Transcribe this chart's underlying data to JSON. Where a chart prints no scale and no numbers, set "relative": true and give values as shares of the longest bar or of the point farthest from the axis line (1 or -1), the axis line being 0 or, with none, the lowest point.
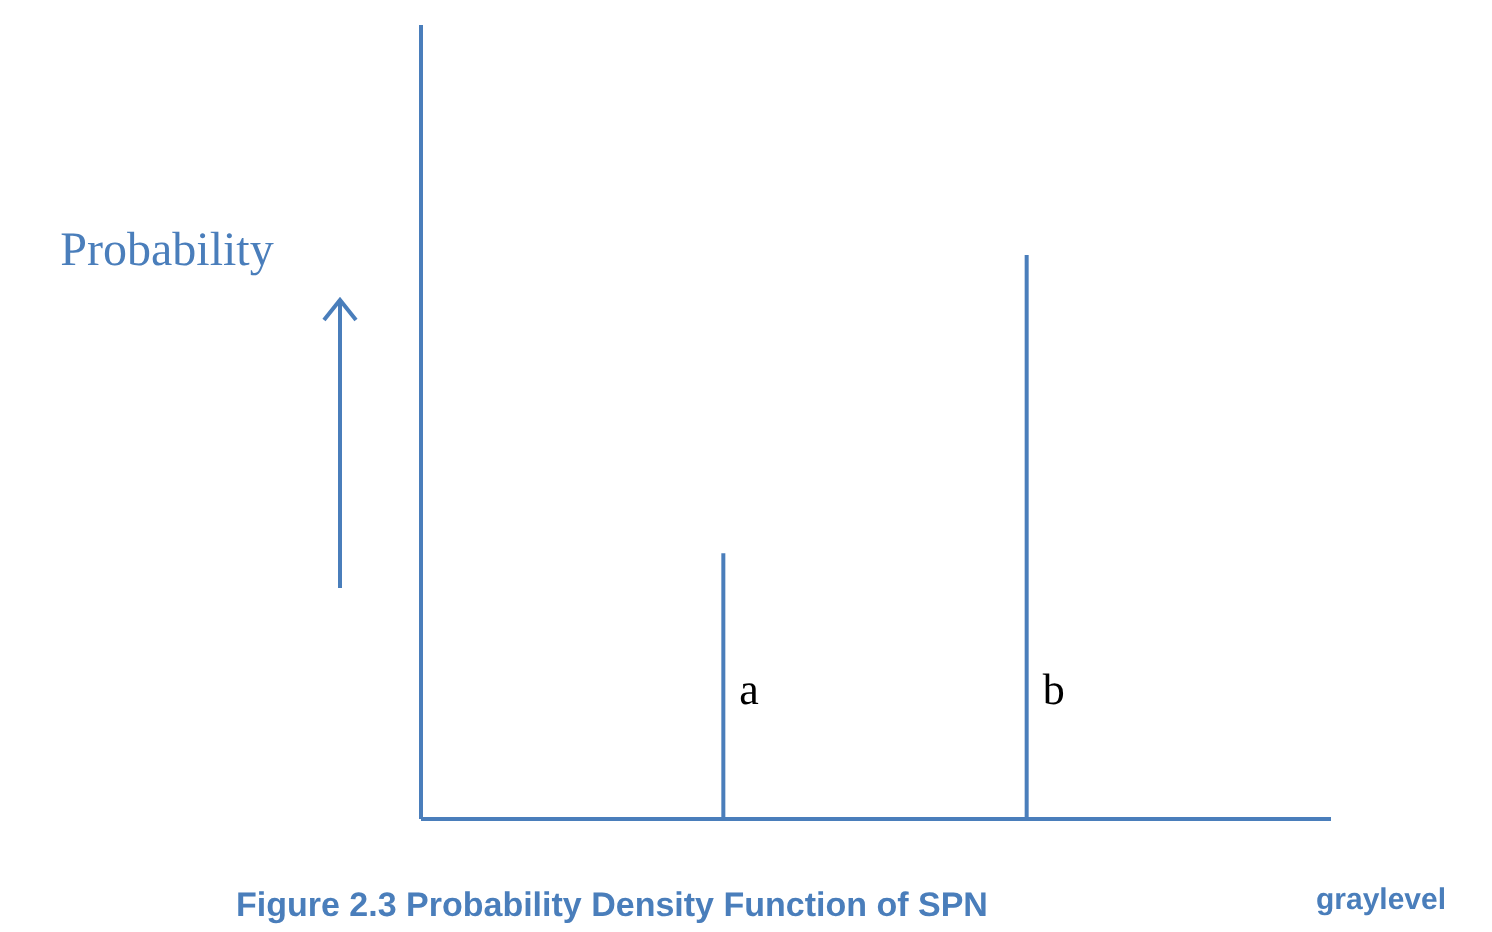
{
  "chart_data": {
    "type": "bar",
    "relative": true,
    "categories": [
      "a",
      "b"
    ],
    "values": [
      0.47,
      1
    ],
    "color": "#4a7ebb",
    "ylabel": "Probability",
    "xlabel": "graylevel",
    "annotations": [
      "Figure 2.3 Probability Density Function of SPN"
    ]
  }
}
